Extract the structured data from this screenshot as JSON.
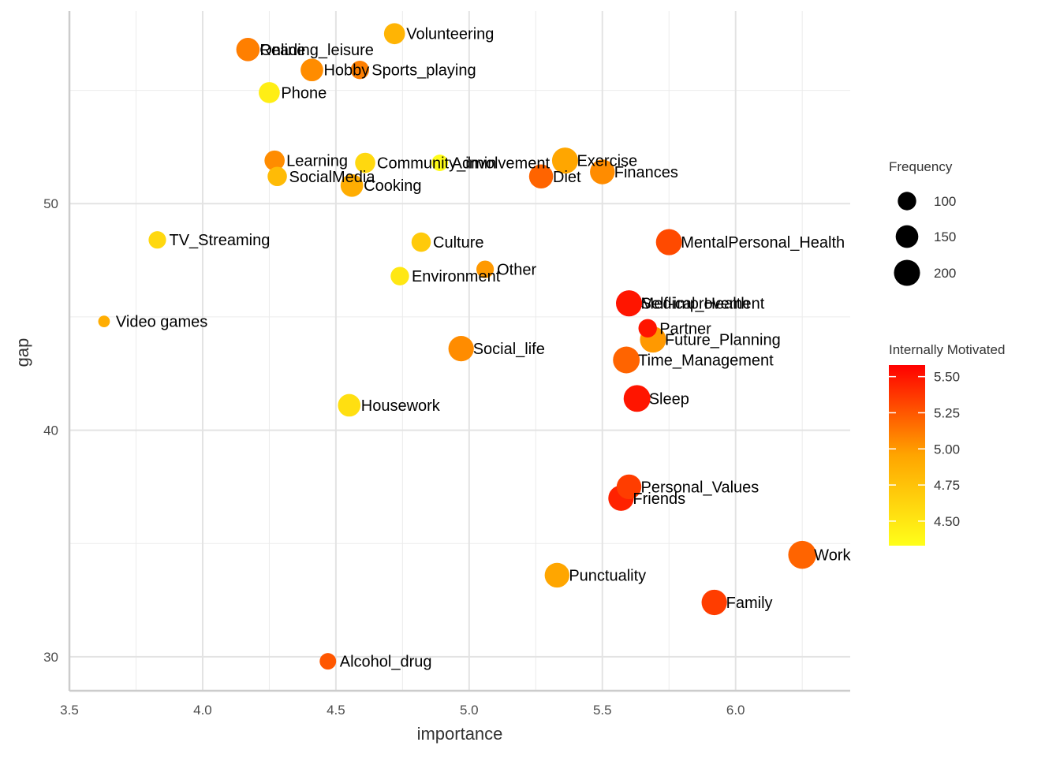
{
  "chart_data": {
    "type": "scatter",
    "title": "",
    "xlabel": "importance",
    "ylabel": "gap",
    "xlim": [
      3.5,
      6.43
    ],
    "ylim": [
      28.5,
      58.5
    ],
    "x_ticks": [
      "3.5",
      "4.0",
      "4.5",
      "5.0",
      "5.5",
      "6.0"
    ],
    "x_tick_values": [
      3.5,
      4.0,
      4.5,
      5.0,
      5.5,
      6.0
    ],
    "y_ticks": [
      "30",
      "40",
      "50"
    ],
    "y_tick_values": [
      30,
      40,
      50
    ],
    "grid": true,
    "size_legend": {
      "title": "Frequency",
      "placement": "right",
      "breaks": [
        "100",
        "150",
        "200"
      ],
      "break_values": [
        100,
        150,
        200
      ]
    },
    "color_legend": {
      "title": "Internally Motivated",
      "placement": "right",
      "low_color": "#FFFF1A",
      "mid_color": "#FFA500",
      "high_color": "#FF0000",
      "range": [
        4.33,
        5.58
      ],
      "breaks": [
        "4.50",
        "4.75",
        "5.00",
        "5.25",
        "5.50"
      ],
      "break_values": [
        4.5,
        4.75,
        5.0,
        5.25,
        5.5
      ]
    },
    "points": [
      {
        "label": "Volunteering",
        "x": 4.72,
        "y": 57.5,
        "freq": 130,
        "color_value": 4.85
      },
      {
        "label": "Reading_leisure",
        "x": 4.17,
        "y": 56.8,
        "freq": 160,
        "color_value": 5.15
      },
      {
        "label": "Online",
        "x": 4.17,
        "y": 56.8,
        "freq": 150,
        "color_value": 5.1
      },
      {
        "label": "Hobby",
        "x": 4.41,
        "y": 55.9,
        "freq": 150,
        "color_value": 5.05
      },
      {
        "label": "Sports_playing",
        "x": 4.59,
        "y": 55.9,
        "freq": 100,
        "color_value": 5.1
      },
      {
        "label": "Phone",
        "x": 4.25,
        "y": 54.9,
        "freq": 130,
        "color_value": 4.45
      },
      {
        "label": "Learning",
        "x": 4.27,
        "y": 51.9,
        "freq": 120,
        "color_value": 5.05
      },
      {
        "label": "Community_involvement",
        "x": 4.61,
        "y": 51.8,
        "freq": 120,
        "color_value": 4.6
      },
      {
        "label": "Admin",
        "x": 4.89,
        "y": 51.8,
        "freq": 80,
        "color_value": 4.35
      },
      {
        "label": "Exercise",
        "x": 5.36,
        "y": 51.9,
        "freq": 200,
        "color_value": 4.95
      },
      {
        "label": "SocialMedia",
        "x": 4.28,
        "y": 51.2,
        "freq": 110,
        "color_value": 4.8
      },
      {
        "label": "Cooking",
        "x": 4.56,
        "y": 50.8,
        "freq": 150,
        "color_value": 4.9
      },
      {
        "label": "Diet",
        "x": 5.27,
        "y": 51.2,
        "freq": 170,
        "color_value": 5.2
      },
      {
        "label": "Finances",
        "x": 5.5,
        "y": 51.4,
        "freq": 180,
        "color_value": 5.05
      },
      {
        "label": "TV_Streaming",
        "x": 3.83,
        "y": 48.4,
        "freq": 90,
        "color_value": 4.6
      },
      {
        "label": "Culture",
        "x": 4.82,
        "y": 48.3,
        "freq": 110,
        "color_value": 4.7
      },
      {
        "label": "MentalPersonal_Health",
        "x": 5.75,
        "y": 48.3,
        "freq": 200,
        "color_value": 5.3
      },
      {
        "label": "Other",
        "x": 5.06,
        "y": 47.1,
        "freq": 90,
        "color_value": 5.0
      },
      {
        "label": "Environment",
        "x": 4.74,
        "y": 46.8,
        "freq": 100,
        "color_value": 4.5
      },
      {
        "label": "Medical_Health",
        "x": 5.6,
        "y": 45.6,
        "freq": 200,
        "color_value": 5.55
      },
      {
        "label": "Self-improvement",
        "x": 5.6,
        "y": 45.6,
        "freq": 190,
        "color_value": 5.5
      },
      {
        "label": "Video games",
        "x": 3.63,
        "y": 44.8,
        "freq": 40,
        "color_value": 4.9
      },
      {
        "label": "Partner",
        "x": 5.67,
        "y": 44.5,
        "freq": 100,
        "color_value": 5.5
      },
      {
        "label": "Future_Planning",
        "x": 5.69,
        "y": 44.0,
        "freq": 200,
        "color_value": 5.0
      },
      {
        "label": "Social_life",
        "x": 4.97,
        "y": 43.6,
        "freq": 190,
        "color_value": 5.05
      },
      {
        "label": "Time_Management",
        "x": 5.59,
        "y": 43.1,
        "freq": 210,
        "color_value": 5.2
      },
      {
        "label": "Sleep",
        "x": 5.63,
        "y": 41.4,
        "freq": 210,
        "color_value": 5.5
      },
      {
        "label": "Housework",
        "x": 4.55,
        "y": 41.1,
        "freq": 150,
        "color_value": 4.55
      },
      {
        "label": "Personal_Values",
        "x": 5.6,
        "y": 37.5,
        "freq": 180,
        "color_value": 5.35
      },
      {
        "label": "Friends",
        "x": 5.57,
        "y": 37.0,
        "freq": 190,
        "color_value": 5.45
      },
      {
        "label": "Work",
        "x": 6.25,
        "y": 34.5,
        "freq": 230,
        "color_value": 5.2
      },
      {
        "label": "Punctuality",
        "x": 5.33,
        "y": 33.6,
        "freq": 180,
        "color_value": 4.95
      },
      {
        "label": "Family",
        "x": 5.92,
        "y": 32.4,
        "freq": 190,
        "color_value": 5.35
      },
      {
        "label": "Alcohol_drug",
        "x": 4.47,
        "y": 29.8,
        "freq": 80,
        "color_value": 5.25
      }
    ]
  }
}
